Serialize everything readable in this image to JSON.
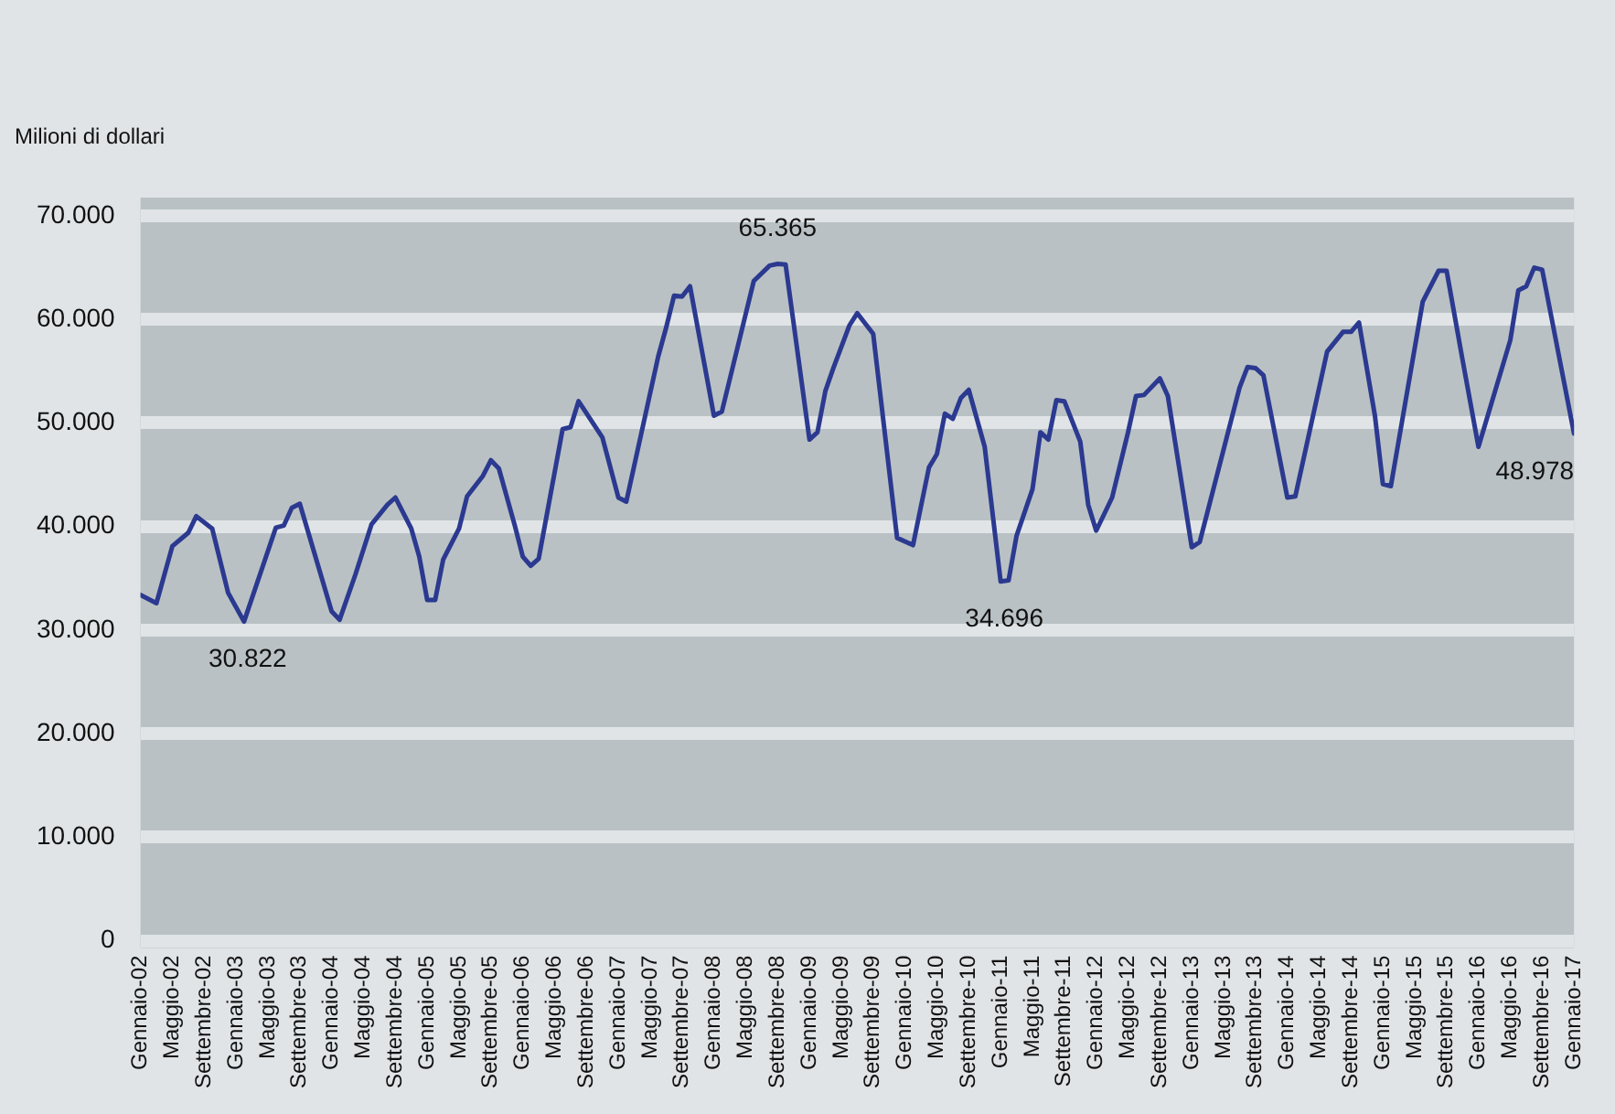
{
  "chart_data": {
    "type": "line",
    "ylabel": "Milioni di dollari",
    "x": [
      "2002-01",
      "2002-03",
      "2002-05",
      "2002-07",
      "2002-08",
      "2002-10",
      "2002-12",
      "2003-02",
      "2003-06",
      "2003-07",
      "2003-08",
      "2003-09",
      "2004-01",
      "2004-02",
      "2004-04",
      "2004-06",
      "2004-08",
      "2004-09",
      "2004-11",
      "2004-12",
      "2005-01",
      "2005-02",
      "2005-03",
      "2005-05",
      "2005-06",
      "2005-08",
      "2005-09",
      "2005-10",
      "2005-12",
      "2006-01",
      "2006-02",
      "2006-03",
      "2006-06",
      "2006-07",
      "2006-08",
      "2006-11",
      "2007-01",
      "2007-02",
      "2007-06",
      "2007-07",
      "2007-08",
      "2007-09",
      "2007-10",
      "2008-01",
      "2008-02",
      "2008-06",
      "2008-08",
      "2008-09",
      "2008-10",
      "2009-01",
      "2009-02",
      "2009-03",
      "2009-04",
      "2009-06",
      "2009-07",
      "2009-09",
      "2009-12",
      "2010-02",
      "2010-04",
      "2010-05",
      "2010-06",
      "2010-07",
      "2010-08",
      "2010-09",
      "2010-11",
      "2011-01",
      "2011-02",
      "2011-03",
      "2011-05",
      "2011-06",
      "2011-07",
      "2011-08",
      "2011-09",
      "2011-11",
      "2011-12",
      "2012-01",
      "2012-03",
      "2012-05",
      "2012-06",
      "2012-07",
      "2012-09",
      "2012-10",
      "2013-01",
      "2013-02",
      "2013-07",
      "2013-08",
      "2013-09",
      "2013-10",
      "2014-01",
      "2014-02",
      "2014-06",
      "2014-08",
      "2014-09",
      "2014-10",
      "2014-12",
      "2015-01",
      "2015-02",
      "2015-06",
      "2015-08",
      "2015-09",
      "2015-11",
      "2016-01",
      "2016-05",
      "2016-06",
      "2016-07",
      "2016-08",
      "2016-09",
      "2017-01"
    ],
    "values": [
      33400,
      32600,
      38100,
      39400,
      41000,
      39800,
      33600,
      30822,
      39900,
      40100,
      41800,
      42200,
      31800,
      31000,
      35400,
      40200,
      42100,
      42800,
      39800,
      37100,
      32900,
      32900,
      36800,
      39800,
      42900,
      44900,
      46400,
      45600,
      40100,
      37100,
      36200,
      36900,
      49400,
      49600,
      52100,
      48600,
      42800,
      42400,
      56400,
      59200,
      62300,
      62200,
      63200,
      50700,
      51100,
      63700,
      65200,
      65365,
      65300,
      48400,
      49100,
      53100,
      55300,
      59400,
      60600,
      58600,
      38900,
      38200,
      45700,
      47000,
      50900,
      50400,
      52400,
      53200,
      47700,
      34696,
      34800,
      39100,
      43600,
      49100,
      48400,
      52200,
      52100,
      48200,
      42100,
      39600,
      42800,
      49100,
      52600,
      52700,
      54300,
      52600,
      38000,
      38500,
      53400,
      55400,
      55300,
      54600,
      42800,
      42900,
      56900,
      58800,
      58800,
      59700,
      50700,
      44100,
      43900,
      61700,
      64700,
      64700,
      56100,
      47700,
      58000,
      62800,
      63200,
      65000,
      64800,
      48978
    ],
    "color": "#2b3990",
    "xlim": [
      "2002-01",
      "2017-01"
    ],
    "xticks": [
      {
        "value": "2002-01",
        "label": "Gennaio-02"
      },
      {
        "value": "2002-05",
        "label": "Maggio-02"
      },
      {
        "value": "2002-09",
        "label": "Settembre-02"
      },
      {
        "value": "2003-01",
        "label": "Gennaio-03"
      },
      {
        "value": "2003-05",
        "label": "Maggio-03"
      },
      {
        "value": "2003-09",
        "label": "Settembre-03"
      },
      {
        "value": "2004-01",
        "label": "Gennaio-04"
      },
      {
        "value": "2004-05",
        "label": "Maggio-04"
      },
      {
        "value": "2004-09",
        "label": "Settembre-04"
      },
      {
        "value": "2005-01",
        "label": "Gennaio-05"
      },
      {
        "value": "2005-05",
        "label": "Maggio-05"
      },
      {
        "value": "2005-09",
        "label": "Settembre-05"
      },
      {
        "value": "2006-01",
        "label": "Gennaio-06"
      },
      {
        "value": "2006-05",
        "label": "Maggio-06"
      },
      {
        "value": "2006-09",
        "label": "Settembre-06"
      },
      {
        "value": "2007-01",
        "label": "Gennaio-07"
      },
      {
        "value": "2007-05",
        "label": "Maggio-07"
      },
      {
        "value": "2007-09",
        "label": "Settembre-07"
      },
      {
        "value": "2008-01",
        "label": "Gennaio-08"
      },
      {
        "value": "2008-05",
        "label": "Maggio-08"
      },
      {
        "value": "2008-09",
        "label": "Settembre-08"
      },
      {
        "value": "2009-01",
        "label": "Gennaio-09"
      },
      {
        "value": "2009-05",
        "label": "Maggio-09"
      },
      {
        "value": "2009-09",
        "label": "Settembre-09"
      },
      {
        "value": "2010-01",
        "label": "Gennaio-10"
      },
      {
        "value": "2010-05",
        "label": "Maggio-10"
      },
      {
        "value": "2010-09",
        "label": "Settembre-10"
      },
      {
        "value": "2011-01",
        "label": "Gennaio-11"
      },
      {
        "value": "2011-05",
        "label": "Maggio-11"
      },
      {
        "value": "2011-09",
        "label": "Settembre-11"
      },
      {
        "value": "2012-01",
        "label": "Gennaio-12"
      },
      {
        "value": "2012-05",
        "label": "Maggio-12"
      },
      {
        "value": "2012-09",
        "label": "Settembre-12"
      },
      {
        "value": "2013-01",
        "label": "Gennaio-13"
      },
      {
        "value": "2013-05",
        "label": "Maggio-13"
      },
      {
        "value": "2013-09",
        "label": "Settembre-13"
      },
      {
        "value": "2014-01",
        "label": "Gennaio-14"
      },
      {
        "value": "2014-05",
        "label": "Maggio-14"
      },
      {
        "value": "2014-09",
        "label": "Settembre-14"
      },
      {
        "value": "2015-01",
        "label": "Gennaio-15"
      },
      {
        "value": "2015-05",
        "label": "Maggio-15"
      },
      {
        "value": "2015-09",
        "label": "Settembre-15"
      },
      {
        "value": "2016-01",
        "label": "Gennaio-16"
      },
      {
        "value": "2016-05",
        "label": "Maggio-16"
      },
      {
        "value": "2016-09",
        "label": "Settembre-16"
      },
      {
        "value": "2017-01",
        "label": "Gennaio-17"
      }
    ],
    "ylim": [
      0,
      70000
    ],
    "yticks": [
      0,
      {
        "value": 10000,
        "label": "10.000"
      },
      {
        "value": 20000,
        "label": "20.000"
      },
      {
        "value": 30000,
        "label": "30.000"
      },
      {
        "value": 40000,
        "label": "40.000"
      },
      {
        "value": 50000,
        "label": "50.000"
      },
      {
        "value": 60000,
        "label": "60.000"
      },
      {
        "value": 70000,
        "label": "70.000"
      }
    ],
    "grid": "y",
    "legend": false,
    "marker": "none",
    "line_style": "solid",
    "annotations": [
      {
        "text": "65.365",
        "x": "2008-09",
        "y": 65365
      },
      {
        "text": "30.822",
        "x": "2003-02",
        "y": 30822
      },
      {
        "text": "34.696",
        "x": "2011-01",
        "y": 34696
      },
      {
        "text": "48.978",
        "x": "2017-01",
        "y": 48978
      }
    ]
  }
}
